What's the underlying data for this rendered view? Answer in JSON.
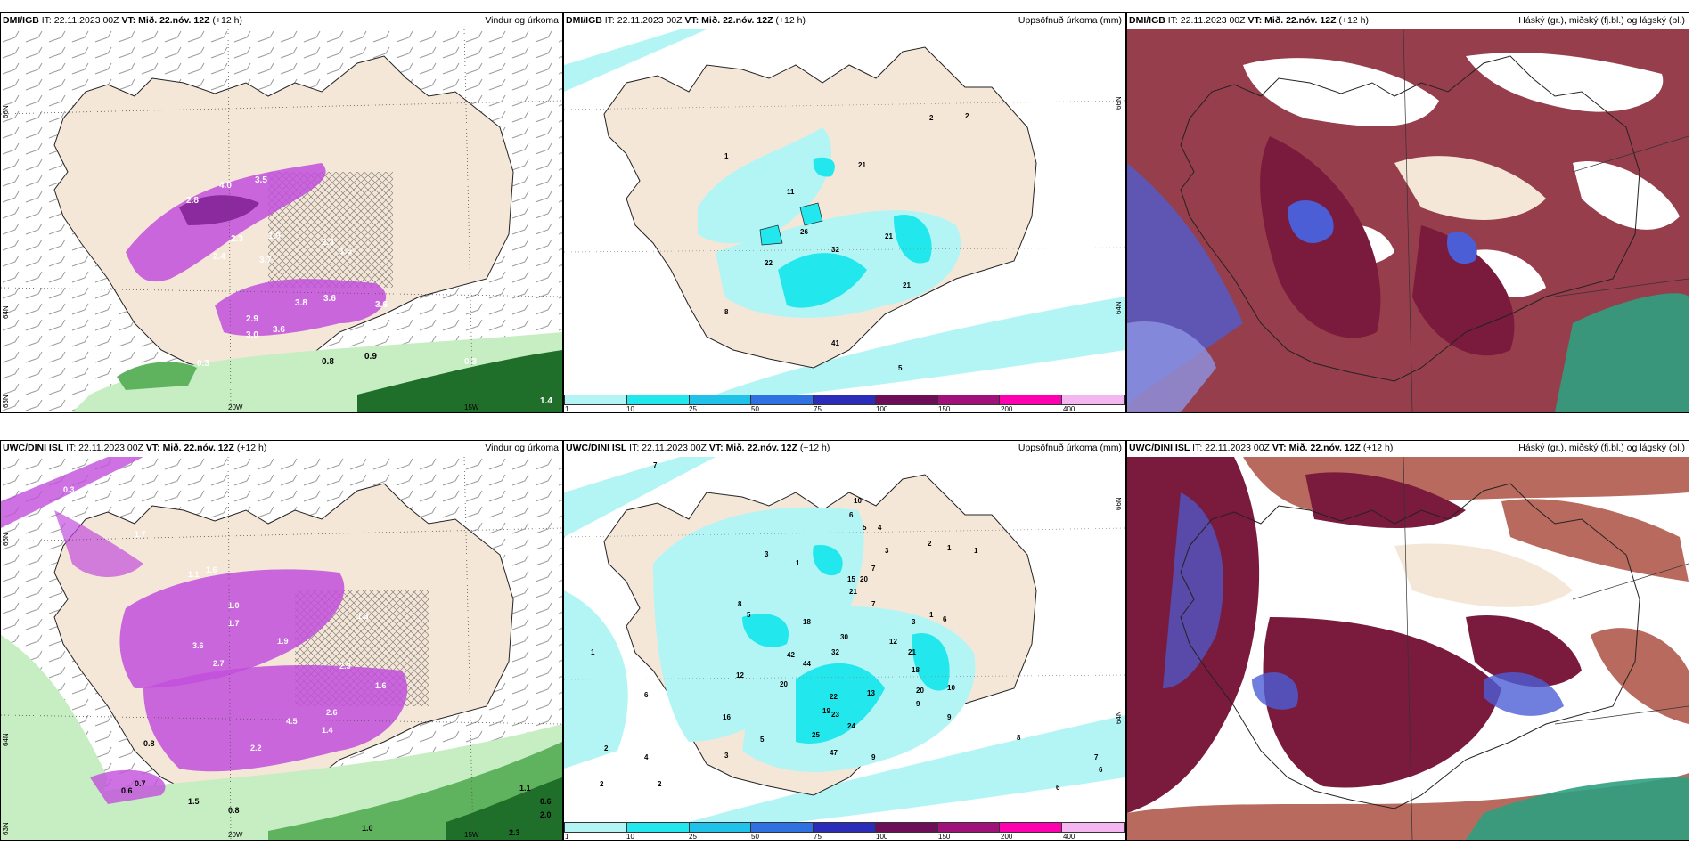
{
  "colors": {
    "land": "#f5e7d8",
    "coast": "#222222",
    "precip_light": "#b3f5f5",
    "precip_mid": "#22e8ee",
    "magenta": "#c24fdc",
    "magenta_dark": "#8a2a9e",
    "green_light": "#c7eec2",
    "green_mid": "#5fb35f",
    "green_dark": "#1f6e2a",
    "cloud_high": "#7a1a3c",
    "cloud_mid": "#4c5ed6",
    "cloud_low": "#b96a5e",
    "cloud_teal": "#2fa07f"
  },
  "colorbar": {
    "ticks": [
      "1",
      "10",
      "25",
      "50",
      "75",
      "100",
      "150",
      "200",
      "400"
    ],
    "colors": [
      "#b3f5f5",
      "#22e8ee",
      "#20c2ea",
      "#2f71e3",
      "#2b2dba",
      "#6e0d58",
      "#a0127a",
      "#ff00b0",
      "#f3b6f0"
    ]
  },
  "panels": {
    "top_wind": {
      "model": "DMI/IGB",
      "it": "IT: 22.11.2023 00Z",
      "vt_label": "VT:",
      "vt": "Mið. 22.nóv. 12Z",
      "lead": "(+12 h)",
      "title": "Vindur og úrkoma",
      "values": [
        "4.0",
        "3.5",
        "2.8",
        "2.3",
        "1.9",
        "2.4",
        "3.7",
        "2.3",
        "1.5",
        "3.8",
        "3.6",
        "3.6",
        "2.9",
        "3.0",
        "3.6",
        "0.3",
        "0.8",
        "0.9",
        "0.3",
        "1.4"
      ],
      "lat_labels": [
        "66N",
        "64N",
        "63N"
      ],
      "lon_labels": [
        "20W",
        "15W"
      ]
    },
    "top_accum": {
      "model": "DMI/IGB",
      "it": "IT: 22.11.2023 00Z",
      "vt_label": "VT:",
      "vt": "Mið. 22.nóv. 12Z",
      "lead": "(+12 h)",
      "title": "Uppsöfnuð úrkoma (mm)",
      "values": [
        "2",
        "2",
        "21",
        "11",
        "26",
        "32",
        "21",
        "22",
        "21",
        "8",
        "41",
        "5",
        "1"
      ],
      "lat_labels": [
        "66N",
        "64N"
      ]
    },
    "top_cloud": {
      "model": "DMI/IGB",
      "it": "IT: 22.11.2023 00Z",
      "vt_label": "VT:",
      "vt": "Mið. 22.nóv. 12Z",
      "lead": "(+12 h)",
      "title": "Háský (gr.), miðský (fj.bl.) og lágský (bl.)"
    },
    "bot_wind": {
      "model": "UWC/DINI ISL",
      "it": "IT: 22.11.2023 00Z",
      "vt_label": "VT:",
      "vt": "Mið. 22.nóv. 12Z",
      "lead": "(+12 h)",
      "title": "Vindur og úrkoma",
      "values": [
        "0.3",
        "1.7",
        "1.1",
        "1.6",
        "1.0",
        "1.7",
        "3.6",
        "2.7",
        "1.9",
        "1.3",
        "2.3",
        "1.6",
        "2.6",
        "4.5",
        "1.4",
        "2.2",
        "0.8",
        "0.7",
        "0.6",
        "1.5",
        "0.8",
        "1.1",
        "0.6",
        "2.0",
        "1.0",
        "2.3"
      ],
      "lat_labels": [
        "66N",
        "64N",
        "63N"
      ],
      "lon_labels": [
        "20W",
        "15W"
      ]
    },
    "bot_accum": {
      "model": "UWC/DINI ISL",
      "it": "IT: 22.11.2023 00Z",
      "vt_label": "VT:",
      "vt": "Mið. 22.nóv. 12Z",
      "lead": "(+12 h)",
      "title": "Uppsöfnuð úrkoma (mm)",
      "values": [
        "7",
        "10",
        "6",
        "5",
        "4",
        "2",
        "1",
        "1",
        "3",
        "1",
        "3",
        "7",
        "15",
        "20",
        "21",
        "7",
        "8",
        "5",
        "18",
        "30",
        "12",
        "1",
        "6",
        "3",
        "42",
        "44",
        "32",
        "21",
        "18",
        "12",
        "20",
        "13",
        "19",
        "22",
        "23",
        "24",
        "20",
        "10",
        "16",
        "5",
        "25",
        "47",
        "9",
        "9",
        "9",
        "8",
        "7",
        "6",
        "6",
        "1",
        "6",
        "4",
        "2",
        "3",
        "2",
        "2"
      ],
      "lat_labels": [
        "66N",
        "64N"
      ]
    },
    "bot_cloud": {
      "model": "UWC/DINI ISL",
      "it": "IT: 22.11.2023 00Z",
      "vt_label": "VT:",
      "vt": "Mið. 22.nóv. 12Z",
      "lead": "(+12 h)",
      "title": "Háský (gr.), miðský (fj.bl.) og lágský (bl.)"
    }
  }
}
